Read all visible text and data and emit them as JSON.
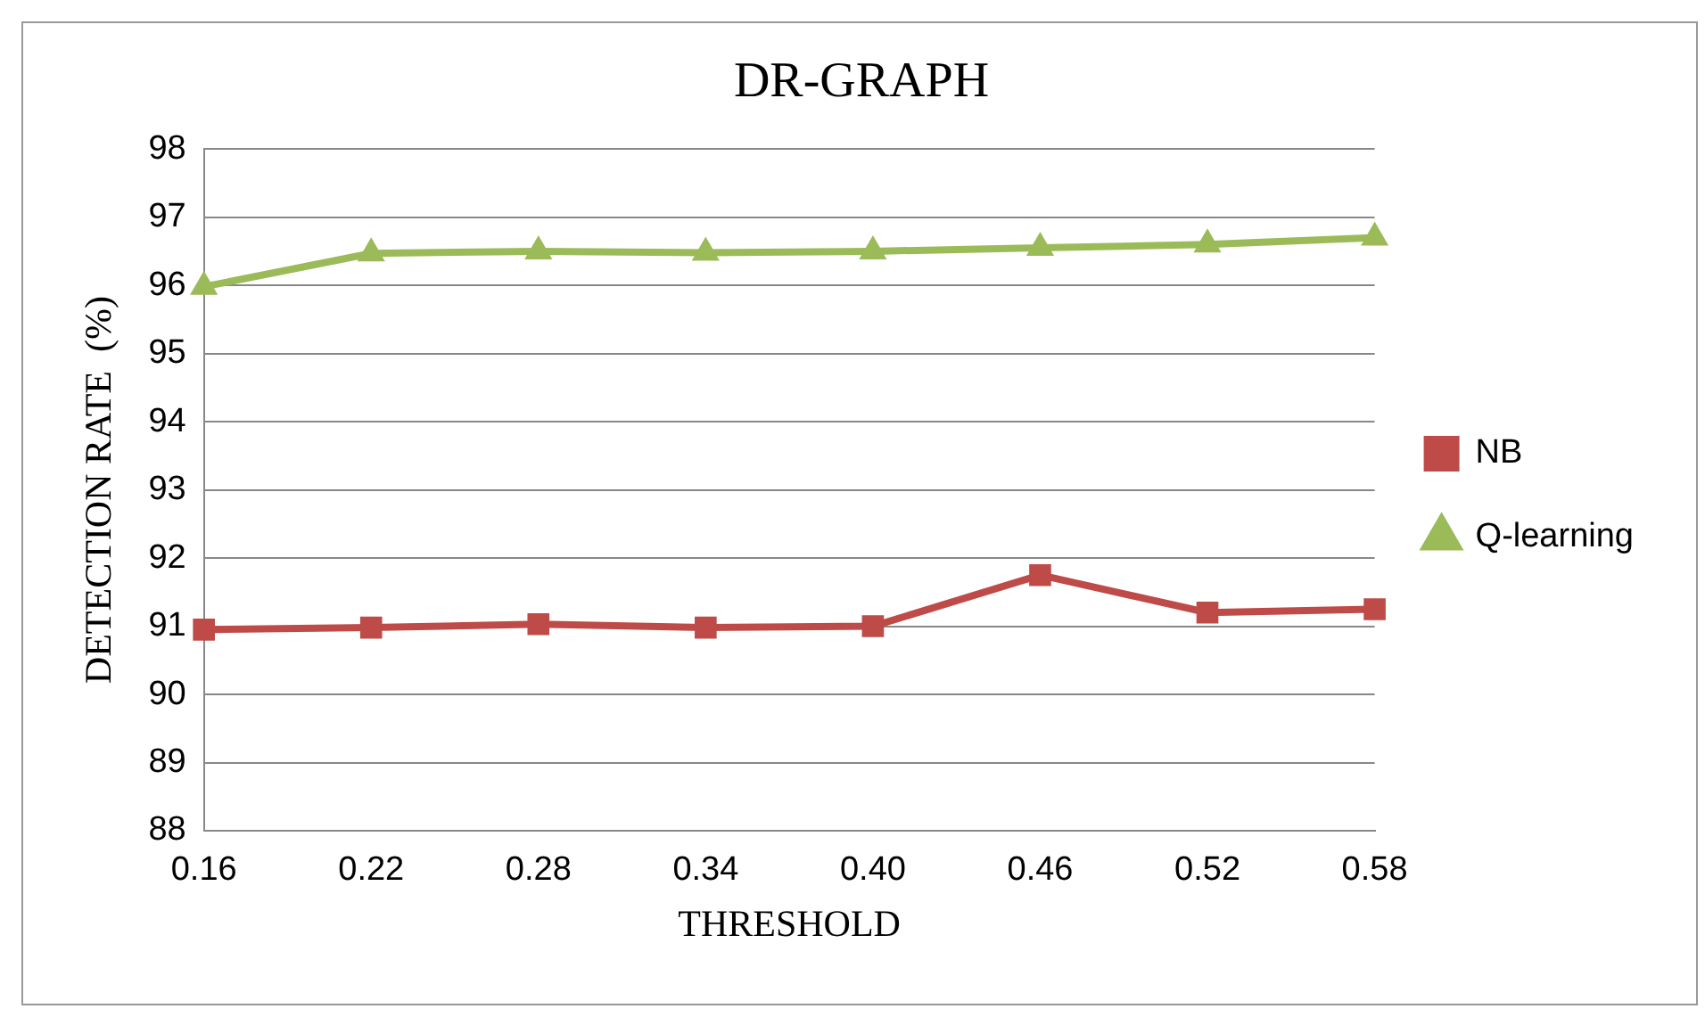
{
  "chart_data": {
    "type": "line",
    "title": "DR-GRAPH",
    "xlabel": "THRESHOLD",
    "ylabel": "DETECTION RATE  (%)",
    "categories": [
      "0.16",
      "0.22",
      "0.28",
      "0.34",
      "0.40",
      "0.46",
      "0.52",
      "0.58"
    ],
    "series": [
      {
        "name": "NB",
        "color": "#be4b48",
        "marker": "square",
        "values": [
          90.95,
          90.98,
          91.03,
          90.98,
          91.0,
          91.75,
          91.2,
          91.25
        ]
      },
      {
        "name": "Q-learning",
        "color": "#9bbb59",
        "marker": "triangle",
        "values": [
          95.98,
          96.47,
          96.5,
          96.48,
          96.5,
          96.55,
          96.6,
          96.7
        ]
      }
    ],
    "ylim": [
      88,
      98
    ],
    "yticks": [
      88,
      89,
      90,
      91,
      92,
      93,
      94,
      95,
      96,
      97,
      98
    ],
    "grid": "y",
    "legend": "right"
  }
}
